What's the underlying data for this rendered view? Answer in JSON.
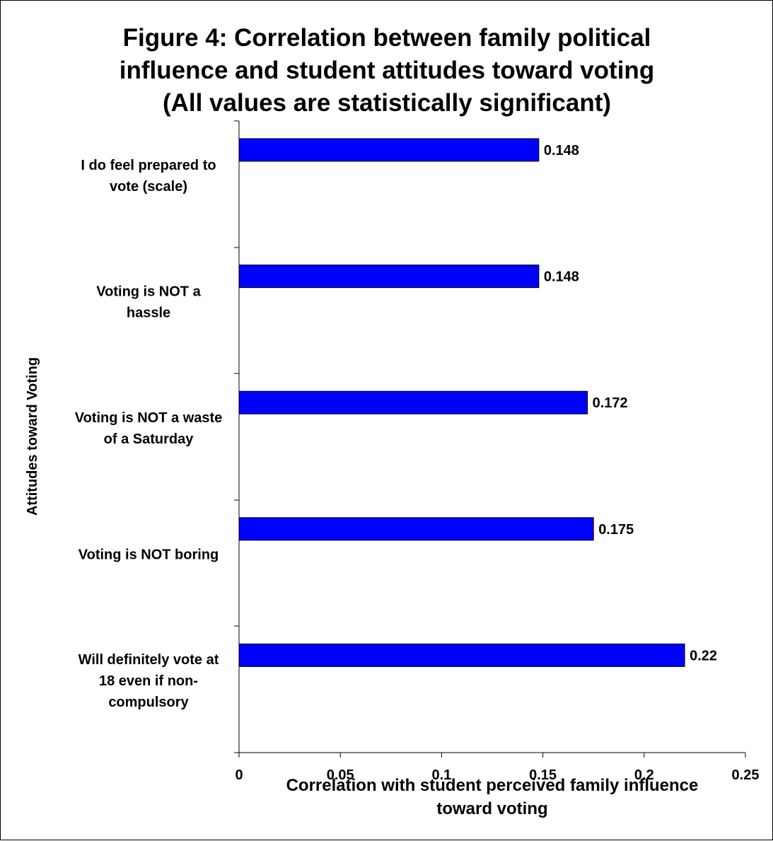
{
  "chart_data": {
    "type": "bar",
    "orientation": "horizontal",
    "title_lines": [
      "Figure 4: Correlation between  family political",
      "influence and student attitudes toward voting",
      "(All values are statistically significant)"
    ],
    "categories": [
      [
        "I do feel prepared to",
        "vote (scale)"
      ],
      [
        "Voting is NOT a",
        "hassle"
      ],
      [
        "Voting is NOT a waste",
        "of a Saturday"
      ],
      [
        "Voting is NOT boring"
      ],
      [
        "Will definitely vote at",
        "18 even if non-",
        "compulsory"
      ]
    ],
    "values": [
      0.148,
      0.148,
      0.172,
      0.175,
      0.22
    ],
    "value_labels": [
      "0.148",
      "0.148",
      "0.172",
      "0.175",
      "0.22"
    ],
    "xlim": [
      0,
      0.25
    ],
    "xticks": [
      0,
      0.05,
      0.1,
      0.15,
      0.2,
      0.25
    ],
    "xtick_labels": [
      "0",
      "0.05",
      "0.1",
      "0.15",
      "0.2",
      "0.25"
    ],
    "xlabel_lines": [
      "Correlation with student perceived family influence",
      "toward voting"
    ],
    "ylabel": "Attitudes toward Voting",
    "bar_color": "#0000ff",
    "grid": false,
    "legend": "none"
  }
}
